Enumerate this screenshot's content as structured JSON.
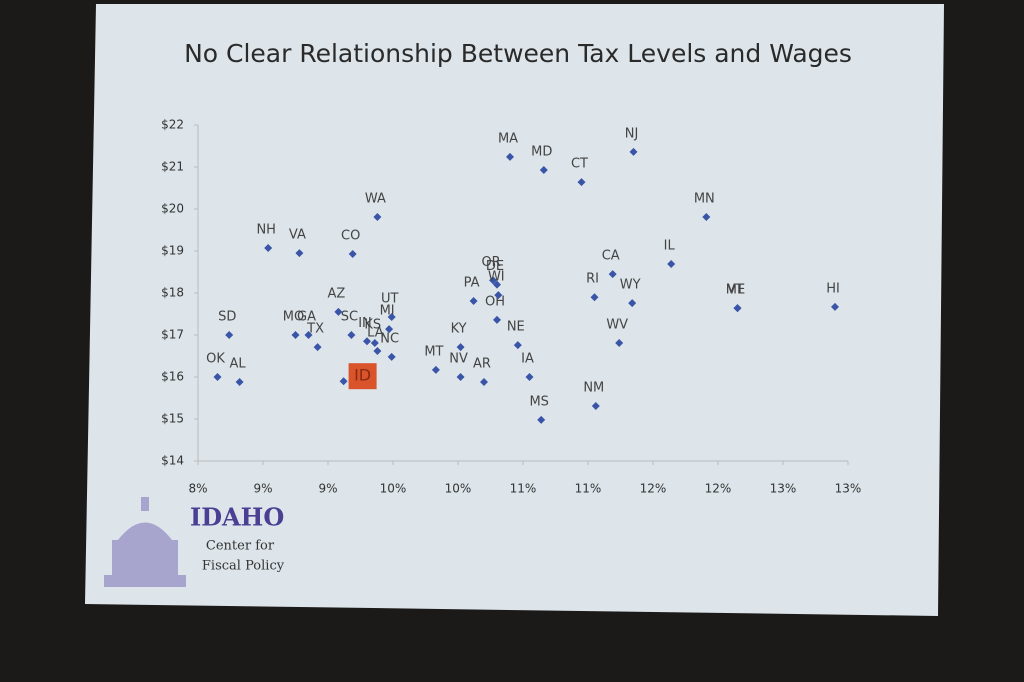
{
  "chart_data": {
    "type": "scatter",
    "title": "No Clear Relationship Between Tax Levels and Wages",
    "point_labels": [
      "OK",
      "AL",
      "SD",
      "NH",
      "VA",
      "MO",
      "GA",
      "TX",
      "CO",
      "WA",
      "AZ",
      "SC",
      "ID",
      "IN",
      "KS",
      "LA",
      "UT",
      "MI",
      "NC",
      "MT",
      "KY",
      "NV",
      "AR",
      "PA",
      "OH",
      "OR",
      "DE",
      "WI",
      "MA",
      "MD",
      "NE",
      "IA",
      "MS",
      "CT",
      "NJ",
      "RI",
      "CA",
      "WY",
      "WV",
      "NM",
      "IL",
      "MN",
      "VT",
      "ME",
      "HI"
    ],
    "x": [
      8.15,
      8.32,
      8.24,
      8.54,
      8.78,
      8.75,
      8.85,
      8.92,
      9.19,
      9.38,
      9.08,
      9.18,
      9.12,
      9.3,
      9.36,
      9.38,
      9.49,
      9.47,
      9.49,
      9.83,
      10.02,
      10.02,
      10.2,
      10.12,
      10.3,
      10.27,
      10.3,
      10.31,
      10.4,
      10.66,
      10.46,
      10.55,
      10.64,
      10.95,
      11.35,
      11.05,
      11.19,
      11.34,
      11.24,
      11.06,
      11.64,
      11.91,
      12.15,
      12.15,
      12.9
    ],
    "values": [
      16.0,
      15.88,
      17.0,
      19.07,
      18.95,
      17.0,
      17.0,
      16.71,
      18.93,
      19.81,
      17.55,
      17.0,
      15.9,
      16.85,
      16.81,
      16.62,
      17.43,
      17.14,
      16.48,
      16.17,
      16.71,
      16.0,
      15.88,
      17.81,
      17.36,
      18.3,
      18.2,
      17.95,
      21.24,
      20.93,
      16.76,
      16.0,
      14.98,
      20.64,
      21.36,
      17.9,
      18.45,
      17.76,
      16.81,
      15.31,
      18.69,
      19.81,
      17.64,
      17.64,
      17.67
    ],
    "color": "#3a55a8",
    "highlight_labels": [
      "ID"
    ],
    "highlight_color": "#d9532b",
    "xlim": [
      8,
      13
    ],
    "ylim": [
      14,
      22
    ],
    "xticks": [
      {
        "value": 8,
        "label": "8%"
      },
      {
        "value": 8.5,
        "label": "9%"
      },
      {
        "value": 9,
        "label": "9%"
      },
      {
        "value": 9.5,
        "label": "10%"
      },
      {
        "value": 10,
        "label": "10%"
      },
      {
        "value": 10.5,
        "label": "11%"
      },
      {
        "value": 11,
        "label": "11%"
      },
      {
        "value": 11.5,
        "label": "12%"
      },
      {
        "value": 12,
        "label": "12%"
      },
      {
        "value": 12.5,
        "label": "13%"
      },
      {
        "value": 13,
        "label": "13%"
      }
    ],
    "yticks": [
      {
        "value": 14,
        "label": "$14"
      },
      {
        "value": 15,
        "label": "$15"
      },
      {
        "value": 16,
        "label": "$16"
      },
      {
        "value": 17,
        "label": "$17"
      },
      {
        "value": 18,
        "label": "$18"
      },
      {
        "value": 19,
        "label": "$19"
      },
      {
        "value": 20,
        "label": "$20"
      },
      {
        "value": 21,
        "label": "$21"
      },
      {
        "value": 22,
        "label": "$22"
      }
    ],
    "grid": false
  },
  "logo": {
    "name": "IDAHO",
    "line1": "Center for",
    "line2": "Fiscal Policy"
  }
}
